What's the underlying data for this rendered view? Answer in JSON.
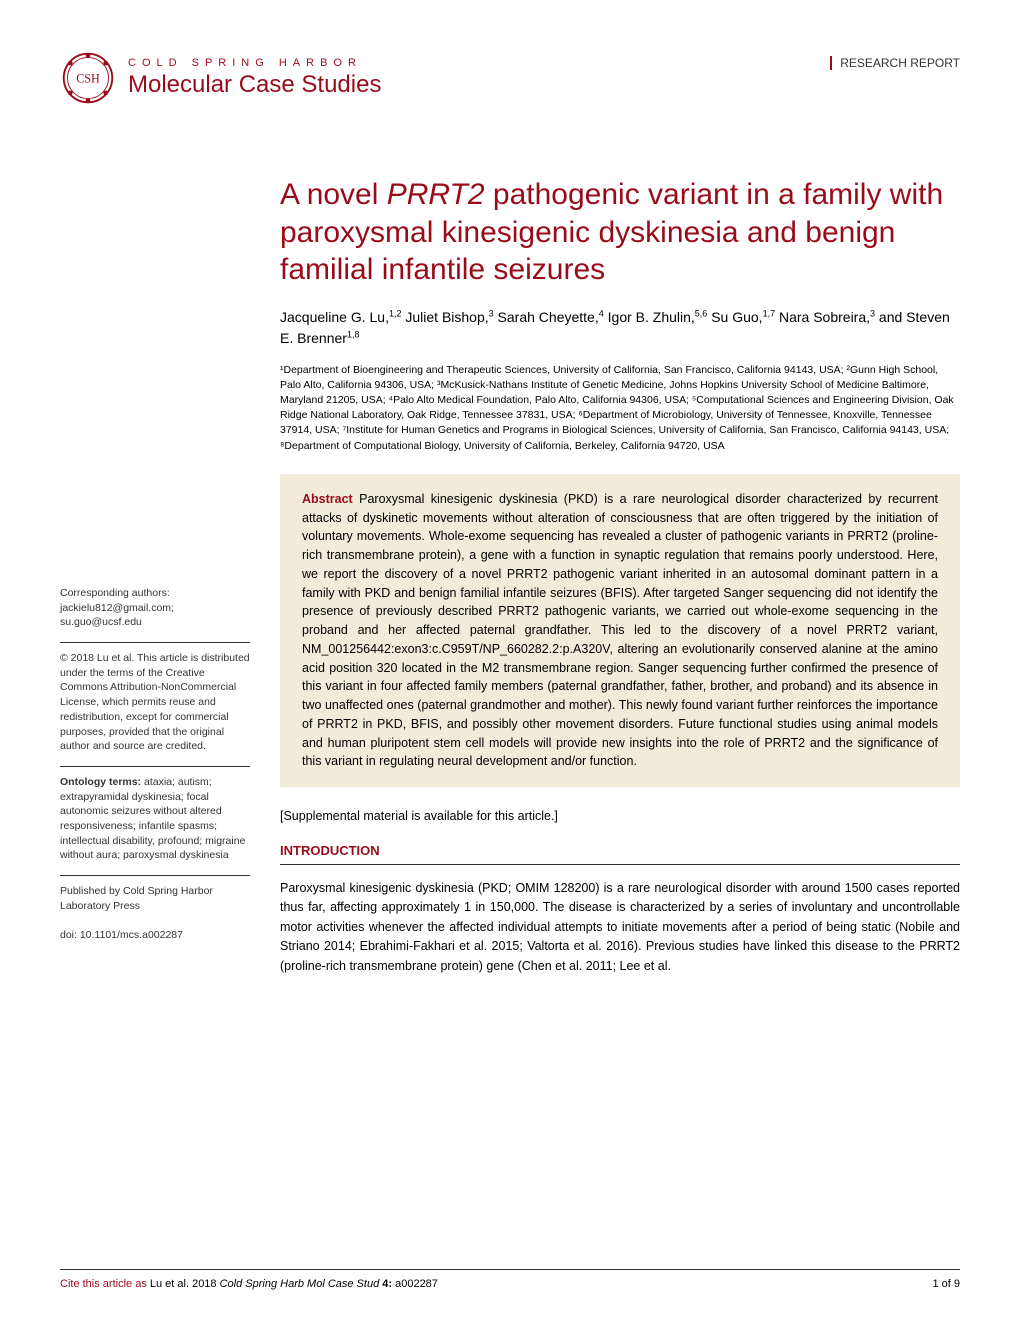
{
  "header": {
    "org": "COLD SPRING HARBOR",
    "journal": "Molecular Case Studies",
    "report_type": "RESEARCH REPORT",
    "logo_color": "#9a0b1a"
  },
  "title": {
    "pre": "A novel ",
    "gene": "PRRT2",
    "post": " pathogenic variant in a family with paroxysmal kinesigenic dyskinesia and benign familial infantile seizures"
  },
  "authors_html": "Jacqueline G. Lu,<sup>1,2</sup> Juliet Bishop,<sup>3</sup> Sarah Cheyette,<sup>4</sup> Igor B. Zhulin,<sup>5,6</sup> Su Guo,<sup>1,7</sup> Nara Sobreira,<sup>3</sup> and Steven E. Brenner<sup>1,8</sup>",
  "affiliations": "¹Department of Bioengineering and Therapeutic Sciences, University of California, San Francisco, California 94143, USA; ²Gunn High School, Palo Alto, California 94306, USA; ³McKusick-Nathans Institute of Genetic Medicine, Johns Hopkins University School of Medicine Baltimore, Maryland 21205, USA; ⁴Palo Alto Medical Foundation, Palo Alto, California 94306, USA; ⁵Computational Sciences and Engineering Division, Oak Ridge National Laboratory, Oak Ridge, Tennessee 37831, USA; ⁶Department of Microbiology, University of Tennessee, Knoxville, Tennessee 37914, USA; ⁷Institute for Human Genetics and Programs in Biological Sciences, University of California, San Francisco, California 94143, USA; ⁸Department of Computational Biology, University of California, Berkeley, California 94720, USA",
  "abstract": {
    "label": "Abstract",
    "text": " Paroxysmal kinesigenic dyskinesia (PKD) is a rare neurological disorder characterized by recurrent attacks of dyskinetic movements without alteration of consciousness that are often triggered by the initiation of voluntary movements. Whole-exome sequencing has revealed a cluster of pathogenic variants in PRRT2 (proline-rich transmembrane protein), a gene with a function in synaptic regulation that remains poorly understood. Here, we report the discovery of a novel PRRT2 pathogenic variant inherited in an autosomal dominant pattern in a family with PKD and benign familial infantile seizures (BFIS). After targeted Sanger sequencing did not identify the presence of previously described PRRT2 pathogenic variants, we carried out whole-exome sequencing in the proband and her affected paternal grandfather. This led to the discovery of a novel PRRT2 variant, NM_001256442:exon3:c.C959T/NP_660282.2:p.A320V, altering an evolutionarily conserved alanine at the amino acid position 320 located in the M2 transmembrane region. Sanger sequencing further confirmed the presence of this variant in four affected family members (paternal grandfather, father, brother, and proband) and its absence in two unaffected ones (paternal grandmother and mother). This newly found variant further reinforces the importance of PRRT2 in PKD, BFIS, and possibly other movement disorders. Future functional studies using animal models and human pluripotent stem cell models will provide new insights into the role of PRRT2 and the significance of this variant in regulating neural development and/or function."
  },
  "supp": "[Supplemental material is available for this article.]",
  "intro_head": "INTRODUCTION",
  "intro_text": "Paroxysmal kinesigenic dyskinesia (PKD; OMIM 128200) is a rare neurological disorder with around 1500 cases reported thus far, affecting approximately 1 in 150,000. The disease is characterized by a series of involuntary and uncontrollable motor activities whenever the affected individual attempts to initiate movements after a period of being static (Nobile and Striano 2014; Ebrahimi-Fakhari et al. 2015; Valtorta et al. 2016). Previous studies have linked this disease to the PRRT2 (proline-rich transmembrane protein) gene (Chen et al. 2011; Lee et al.",
  "sidebar": {
    "corresponding_label": "Corresponding authors:",
    "corresponding_emails": "jackielu812@gmail.com; su.guo@ucsf.edu",
    "license": "© 2018 Lu et al. This article is distributed under the terms of the Creative Commons Attribution-NonCommercial License, which permits reuse and redistribution, except for commercial purposes, provided that the original author and source are credited.",
    "ontology_label": "Ontology terms:",
    "ontology_terms": " ataxia; autism; extrapyramidal dyskinesia; focal autonomic seizures without altered responsiveness; infantile spasms; intellectual disability, profound; migraine without aura; paroxysmal dyskinesia",
    "publisher": "Published by Cold Spring Harbor Laboratory Press",
    "doi": "doi: 10.1101/mcs.a002287"
  },
  "footer": {
    "cite_label": "Cite this article as ",
    "cite_authors": "Lu et al. 2018 ",
    "cite_journal": "Cold Spring Harb Mol Case Stud ",
    "cite_vol": "4: ",
    "cite_id": "a002287",
    "page_num": "1 of 9"
  },
  "colors": {
    "brand": "#9a0b1a",
    "abstract_bg": "#f0ecd9",
    "text": "#000000",
    "border": "#333333"
  }
}
